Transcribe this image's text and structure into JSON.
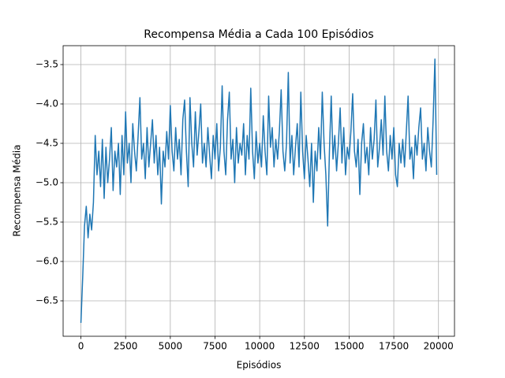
{
  "chart_data": {
    "type": "line",
    "title": "Recompensa Média a Cada 100 Episódios",
    "x_label": "Episódios",
    "y_label": "Recompensa Média",
    "grid": true,
    "xlim": [
      -995,
      20895
    ],
    "ylim": [
      -6.95,
      -3.26
    ],
    "xticks": [
      0,
      2500,
      5000,
      7500,
      10000,
      12500,
      15000,
      17500,
      20000
    ],
    "yticks": [
      {
        "value": -6.5,
        "label": "−6.5"
      },
      {
        "value": -6.0,
        "label": "−6.0"
      },
      {
        "value": -5.5,
        "label": "−5.5"
      },
      {
        "value": -5.0,
        "label": "−5.0"
      },
      {
        "value": -4.5,
        "label": "−4.5"
      },
      {
        "value": -4.0,
        "label": "−4.0"
      },
      {
        "value": -3.5,
        "label": "−3.5"
      }
    ],
    "x": [
      0,
      100,
      200,
      300,
      400,
      500,
      600,
      700,
      800,
      900,
      1000,
      1100,
      1200,
      1300,
      1400,
      1500,
      1600,
      1700,
      1800,
      1900,
      2000,
      2100,
      2200,
      2300,
      2400,
      2500,
      2600,
      2700,
      2800,
      2900,
      3000,
      3100,
      3200,
      3300,
      3400,
      3500,
      3600,
      3700,
      3800,
      3900,
      4000,
      4100,
      4200,
      4300,
      4400,
      4500,
      4600,
      4700,
      4800,
      4900,
      5000,
      5100,
      5200,
      5300,
      5400,
      5500,
      5600,
      5700,
      5800,
      5900,
      6000,
      6100,
      6200,
      6300,
      6400,
      6500,
      6600,
      6700,
      6800,
      6900,
      7000,
      7100,
      7200,
      7300,
      7400,
      7500,
      7600,
      7700,
      7800,
      7900,
      8000,
      8100,
      8200,
      8300,
      8400,
      8500,
      8600,
      8700,
      8800,
      8900,
      9000,
      9100,
      9200,
      9300,
      9400,
      9500,
      9600,
      9700,
      9800,
      9900,
      10000,
      10100,
      10200,
      10300,
      10400,
      10500,
      10600,
      10700,
      10800,
      10900,
      11000,
      11100,
      11200,
      11300,
      11400,
      11500,
      11600,
      11700,
      11800,
      11900,
      12000,
      12100,
      12200,
      12300,
      12400,
      12500,
      12600,
      12700,
      12800,
      12900,
      13000,
      13100,
      13200,
      13300,
      13400,
      13500,
      13600,
      13700,
      13800,
      13900,
      14000,
      14100,
      14200,
      14300,
      14400,
      14500,
      14600,
      14700,
      14800,
      14900,
      15000,
      15100,
      15200,
      15300,
      15400,
      15500,
      15600,
      15700,
      15800,
      15900,
      16000,
      16100,
      16200,
      16300,
      16400,
      16500,
      16600,
      16700,
      16800,
      16900,
      17000,
      17100,
      17200,
      17300,
      17400,
      17500,
      17600,
      17700,
      17800,
      17900,
      18000,
      18100,
      18200,
      18300,
      18400,
      18500,
      18600,
      18700,
      18800,
      18900,
      19000,
      19100,
      19200,
      19300,
      19400,
      19500,
      19600,
      19700,
      19800,
      19900
    ],
    "series": [
      {
        "color": "#1f77b4",
        "values": [
          -6.78,
          -6.2,
          -5.55,
          -5.3,
          -5.7,
          -5.4,
          -5.6,
          -5.25,
          -4.4,
          -4.9,
          -4.6,
          -5.05,
          -4.45,
          -5.2,
          -4.55,
          -5.0,
          -4.7,
          -4.3,
          -5.1,
          -4.6,
          -4.8,
          -4.5,
          -5.15,
          -4.4,
          -4.9,
          -4.1,
          -4.75,
          -4.5,
          -5.0,
          -4.25,
          -4.6,
          -4.85,
          -4.4,
          -3.92,
          -4.7,
          -4.5,
          -4.95,
          -4.3,
          -4.8,
          -4.5,
          -4.2,
          -4.75,
          -4.4,
          -4.9,
          -4.55,
          -5.27,
          -4.6,
          -4.8,
          -4.35,
          -4.7,
          -4.02,
          -4.6,
          -4.85,
          -4.3,
          -4.7,
          -4.45,
          -4.9,
          -4.2,
          -3.95,
          -4.6,
          -5.05,
          -3.92,
          -4.5,
          -4.8,
          -4.1,
          -4.65,
          -4.35,
          -4.0,
          -4.75,
          -4.5,
          -4.8,
          -4.3,
          -4.65,
          -4.95,
          -4.4,
          -4.7,
          -4.25,
          -4.85,
          -4.55,
          -3.77,
          -4.6,
          -4.9,
          -4.2,
          -3.85,
          -4.7,
          -4.45,
          -5.0,
          -4.3,
          -4.75,
          -4.5,
          -4.65,
          -4.25,
          -4.9,
          -4.4,
          -4.7,
          -3.8,
          -4.6,
          -4.95,
          -4.35,
          -4.75,
          -4.5,
          -4.8,
          -4.15,
          -4.6,
          -4.9,
          -3.9,
          -4.55,
          -4.3,
          -4.8,
          -4.45,
          -4.7,
          -4.35,
          -3.82,
          -4.6,
          -4.85,
          -4.5,
          -3.6,
          -4.75,
          -4.4,
          -4.9,
          -4.55,
          -4.25,
          -4.8,
          -3.85,
          -4.6,
          -4.95,
          -4.4,
          -4.7,
          -5.05,
          -4.5,
          -5.25,
          -4.6,
          -4.85,
          -4.3,
          -4.7,
          -3.85,
          -4.5,
          -4.9,
          -5.55,
          -4.6,
          -3.9,
          -4.7,
          -4.4,
          -4.85,
          -4.5,
          -4.05,
          -4.75,
          -4.3,
          -4.9,
          -4.55,
          -4.7,
          -4.35,
          -3.87,
          -4.6,
          -4.8,
          -4.45,
          -5.15,
          -4.5,
          -4.25,
          -4.75,
          -4.55,
          -4.9,
          -4.3,
          -4.7,
          -4.45,
          -3.95,
          -4.8,
          -4.55,
          -4.2,
          -4.65,
          -3.9,
          -4.6,
          -4.85,
          -4.4,
          -4.7,
          -4.3,
          -4.9,
          -5.05,
          -4.5,
          -4.75,
          -4.45,
          -4.8,
          -4.35,
          -3.9,
          -4.7,
          -4.55,
          -4.95,
          -4.4,
          -4.65,
          -4.3,
          -4.05,
          -4.7,
          -4.5,
          -4.85,
          -4.3,
          -4.6,
          -4.8,
          -4.2,
          -3.43,
          -4.9
        ]
      }
    ]
  }
}
